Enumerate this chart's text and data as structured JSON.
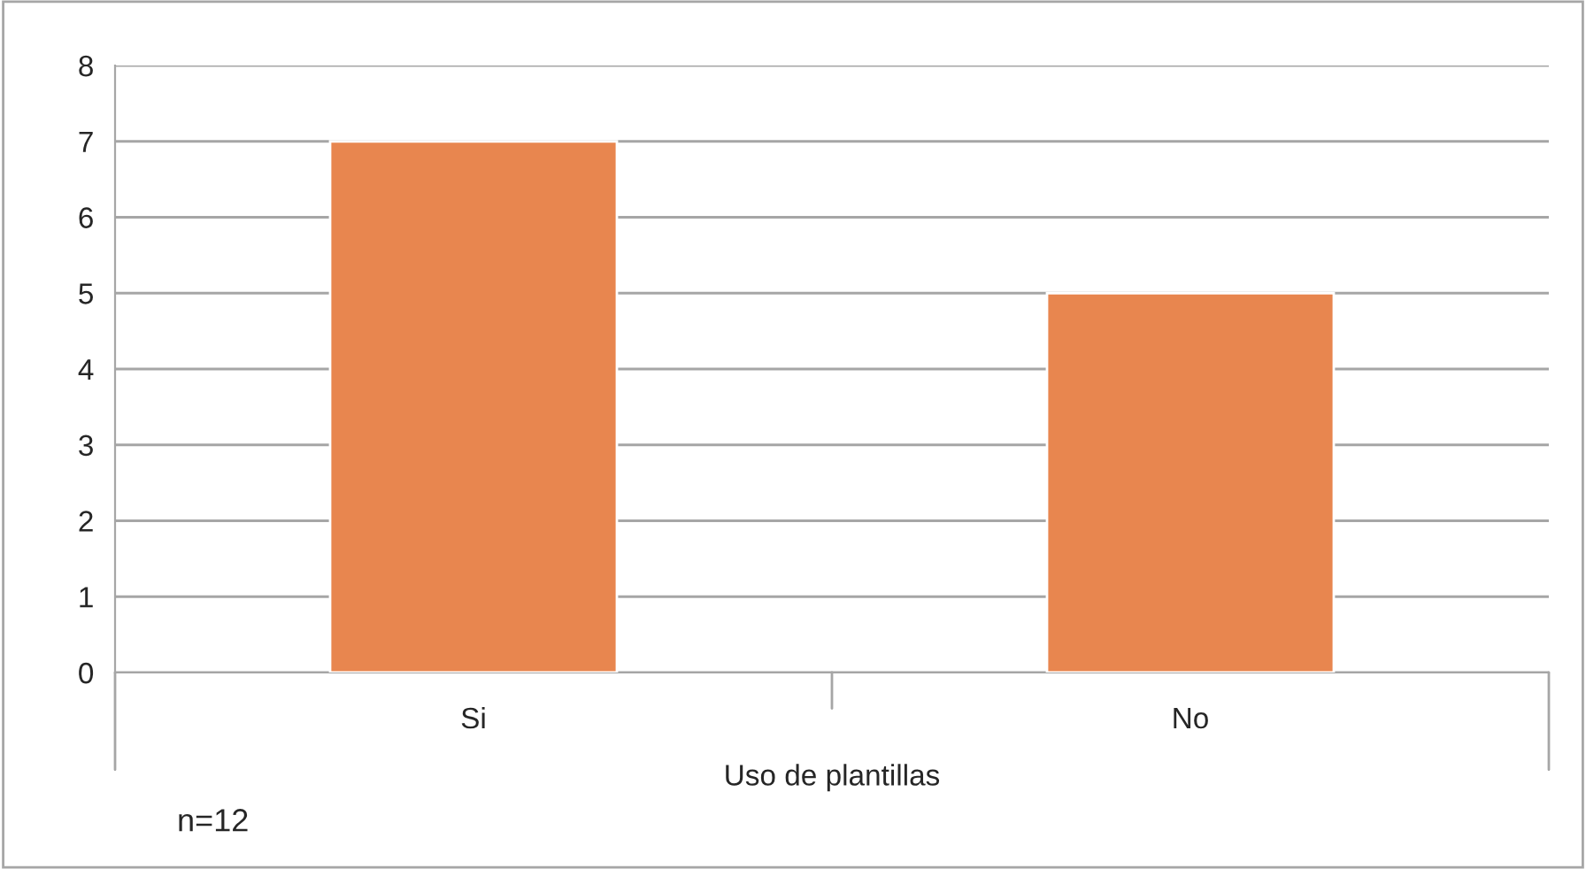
{
  "chart_data": {
    "type": "bar",
    "xlabel": "Uso de plantillas",
    "categories": [
      "Si",
      "No"
    ],
    "values": [
      7,
      5
    ],
    "color": "#e8864f",
    "ylim": [
      0,
      8
    ],
    "yticks": [
      0,
      1,
      2,
      3,
      4,
      5,
      6,
      7,
      8
    ],
    "grid": "y",
    "annotations": [
      "n=12"
    ]
  }
}
